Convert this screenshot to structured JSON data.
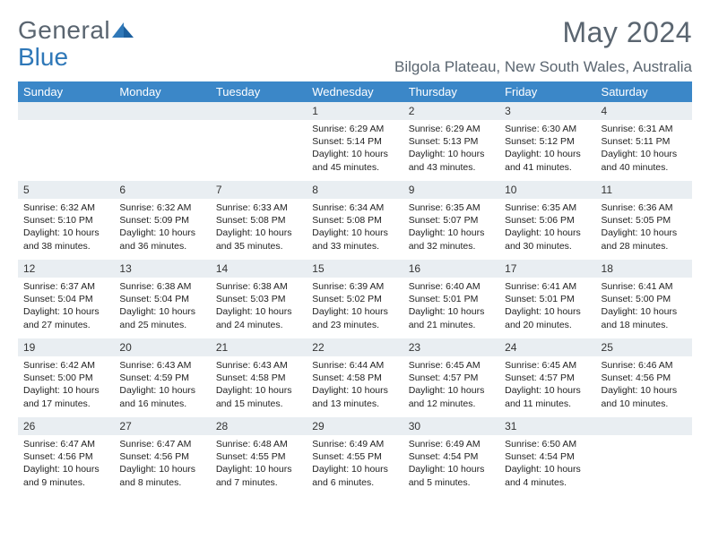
{
  "logo": {
    "text1": "General",
    "text2": "Blue",
    "color_gray": "#5a6570",
    "color_blue": "#2f78b8"
  },
  "title": "May 2024",
  "location": "Bilgola Plateau, New South Wales, Australia",
  "header_bg": "#3b87c8",
  "daynum_bg": "#e9eef2",
  "weekdays": [
    "Sunday",
    "Monday",
    "Tuesday",
    "Wednesday",
    "Thursday",
    "Friday",
    "Saturday"
  ],
  "weeks": [
    {
      "nums": [
        "",
        "",
        "",
        "1",
        "2",
        "3",
        "4"
      ],
      "cells": [
        null,
        null,
        null,
        {
          "sunrise": "6:29 AM",
          "sunset": "5:14 PM",
          "daylight": "10 hours and 45 minutes."
        },
        {
          "sunrise": "6:29 AM",
          "sunset": "5:13 PM",
          "daylight": "10 hours and 43 minutes."
        },
        {
          "sunrise": "6:30 AM",
          "sunset": "5:12 PM",
          "daylight": "10 hours and 41 minutes."
        },
        {
          "sunrise": "6:31 AM",
          "sunset": "5:11 PM",
          "daylight": "10 hours and 40 minutes."
        }
      ]
    },
    {
      "nums": [
        "5",
        "6",
        "7",
        "8",
        "9",
        "10",
        "11"
      ],
      "cells": [
        {
          "sunrise": "6:32 AM",
          "sunset": "5:10 PM",
          "daylight": "10 hours and 38 minutes."
        },
        {
          "sunrise": "6:32 AM",
          "sunset": "5:09 PM",
          "daylight": "10 hours and 36 minutes."
        },
        {
          "sunrise": "6:33 AM",
          "sunset": "5:08 PM",
          "daylight": "10 hours and 35 minutes."
        },
        {
          "sunrise": "6:34 AM",
          "sunset": "5:08 PM",
          "daylight": "10 hours and 33 minutes."
        },
        {
          "sunrise": "6:35 AM",
          "sunset": "5:07 PM",
          "daylight": "10 hours and 32 minutes."
        },
        {
          "sunrise": "6:35 AM",
          "sunset": "5:06 PM",
          "daylight": "10 hours and 30 minutes."
        },
        {
          "sunrise": "6:36 AM",
          "sunset": "5:05 PM",
          "daylight": "10 hours and 28 minutes."
        }
      ]
    },
    {
      "nums": [
        "12",
        "13",
        "14",
        "15",
        "16",
        "17",
        "18"
      ],
      "cells": [
        {
          "sunrise": "6:37 AM",
          "sunset": "5:04 PM",
          "daylight": "10 hours and 27 minutes."
        },
        {
          "sunrise": "6:38 AM",
          "sunset": "5:04 PM",
          "daylight": "10 hours and 25 minutes."
        },
        {
          "sunrise": "6:38 AM",
          "sunset": "5:03 PM",
          "daylight": "10 hours and 24 minutes."
        },
        {
          "sunrise": "6:39 AM",
          "sunset": "5:02 PM",
          "daylight": "10 hours and 23 minutes."
        },
        {
          "sunrise": "6:40 AM",
          "sunset": "5:01 PM",
          "daylight": "10 hours and 21 minutes."
        },
        {
          "sunrise": "6:41 AM",
          "sunset": "5:01 PM",
          "daylight": "10 hours and 20 minutes."
        },
        {
          "sunrise": "6:41 AM",
          "sunset": "5:00 PM",
          "daylight": "10 hours and 18 minutes."
        }
      ]
    },
    {
      "nums": [
        "19",
        "20",
        "21",
        "22",
        "23",
        "24",
        "25"
      ],
      "cells": [
        {
          "sunrise": "6:42 AM",
          "sunset": "5:00 PM",
          "daylight": "10 hours and 17 minutes."
        },
        {
          "sunrise": "6:43 AM",
          "sunset": "4:59 PM",
          "daylight": "10 hours and 16 minutes."
        },
        {
          "sunrise": "6:43 AM",
          "sunset": "4:58 PM",
          "daylight": "10 hours and 15 minutes."
        },
        {
          "sunrise": "6:44 AM",
          "sunset": "4:58 PM",
          "daylight": "10 hours and 13 minutes."
        },
        {
          "sunrise": "6:45 AM",
          "sunset": "4:57 PM",
          "daylight": "10 hours and 12 minutes."
        },
        {
          "sunrise": "6:45 AM",
          "sunset": "4:57 PM",
          "daylight": "10 hours and 11 minutes."
        },
        {
          "sunrise": "6:46 AM",
          "sunset": "4:56 PM",
          "daylight": "10 hours and 10 minutes."
        }
      ]
    },
    {
      "nums": [
        "26",
        "27",
        "28",
        "29",
        "30",
        "31",
        ""
      ],
      "cells": [
        {
          "sunrise": "6:47 AM",
          "sunset": "4:56 PM",
          "daylight": "10 hours and 9 minutes."
        },
        {
          "sunrise": "6:47 AM",
          "sunset": "4:56 PM",
          "daylight": "10 hours and 8 minutes."
        },
        {
          "sunrise": "6:48 AM",
          "sunset": "4:55 PM",
          "daylight": "10 hours and 7 minutes."
        },
        {
          "sunrise": "6:49 AM",
          "sunset": "4:55 PM",
          "daylight": "10 hours and 6 minutes."
        },
        {
          "sunrise": "6:49 AM",
          "sunset": "4:54 PM",
          "daylight": "10 hours and 5 minutes."
        },
        {
          "sunrise": "6:50 AM",
          "sunset": "4:54 PM",
          "daylight": "10 hours and 4 minutes."
        },
        null
      ]
    }
  ],
  "labels": {
    "sunrise": "Sunrise:",
    "sunset": "Sunset:",
    "daylight": "Daylight:"
  }
}
